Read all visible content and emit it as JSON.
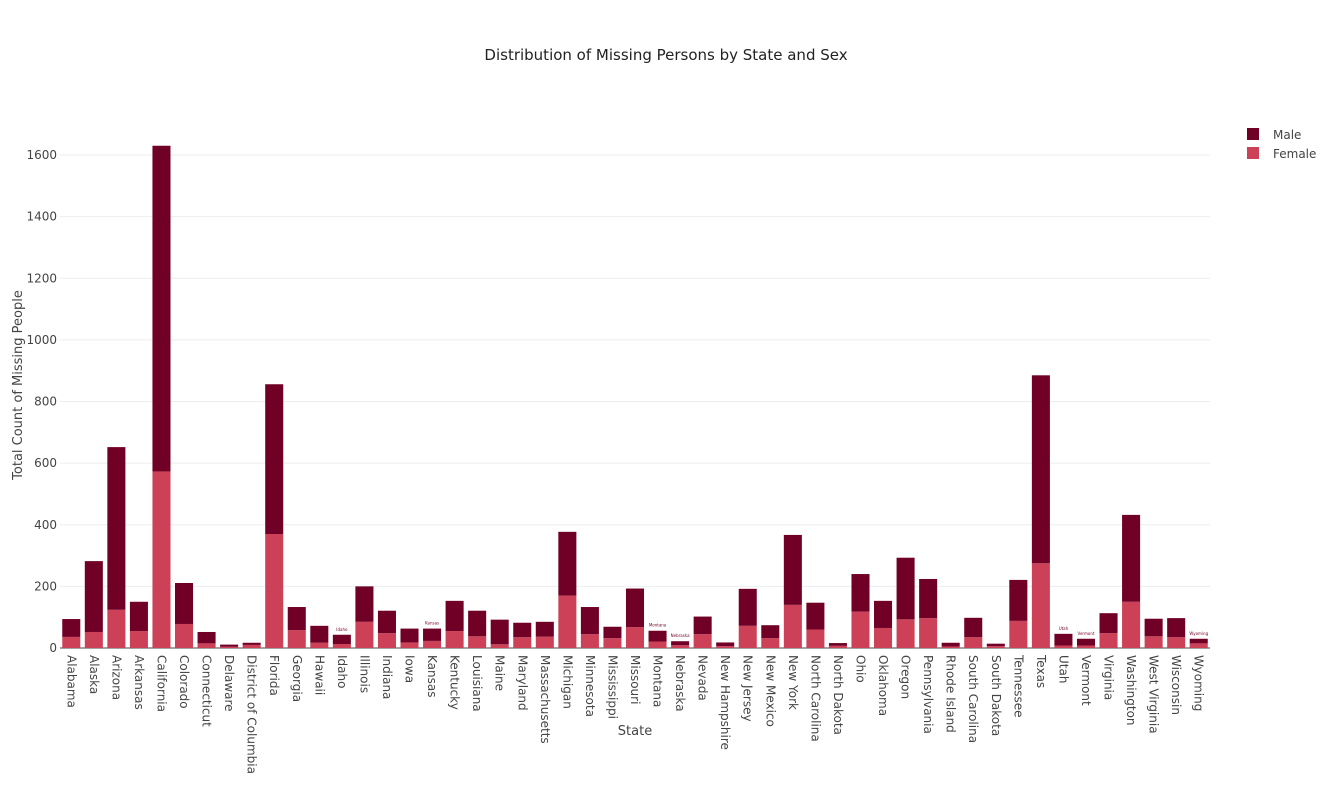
{
  "chart_data": {
    "type": "bar",
    "barmode": "stack",
    "title": "Distribution of Missing Persons by State and Sex",
    "xlabel": "State",
    "ylabel": "Total Count of Missing People",
    "ylim": [
      0,
      1700
    ],
    "yticks": [
      0,
      200,
      400,
      600,
      800,
      1000,
      1200,
      1400,
      1600
    ],
    "grid": true,
    "legend_position": "top-right",
    "categories": [
      "Alabama",
      "Alaska",
      "Arizona",
      "Arkansas",
      "California",
      "Colorado",
      "Connecticut",
      "Delaware",
      "District of Columbia",
      "Florida",
      "Georgia",
      "Hawaii",
      "Idaho",
      "Illinois",
      "Indiana",
      "Iowa",
      "Kansas",
      "Kentucky",
      "Louisiana",
      "Maine",
      "Maryland",
      "Massachusetts",
      "Michigan",
      "Minnesota",
      "Mississippi",
      "Missouri",
      "Montana",
      "Nebraska",
      "Nevada",
      "New Hampshire",
      "New Jersey",
      "New Mexico",
      "New York",
      "North Carolina",
      "North Dakota",
      "Ohio",
      "Oklahoma",
      "Oregon",
      "Pennsylvania",
      "Rhode Island",
      "South Carolina",
      "South Dakota",
      "Tennessee",
      "Texas",
      "Utah",
      "Vermont",
      "Virginia",
      "Washington",
      "West Virginia",
      "Wisconsin",
      "Wyoming"
    ],
    "series": [
      {
        "name": "Female",
        "color": "#cc4158",
        "values": [
          36,
          52,
          124,
          55,
          573,
          78,
          15,
          4,
          10,
          370,
          58,
          17,
          13,
          85,
          48,
          18,
          23,
          55,
          38,
          12,
          35,
          37,
          170,
          45,
          32,
          68,
          21,
          9,
          45,
          6,
          72,
          32,
          140,
          60,
          7,
          118,
          65,
          93,
          97,
          5,
          35,
          6,
          88,
          275,
          8,
          8,
          48,
          150,
          38,
          35,
          15
        ]
      },
      {
        "name": "Male",
        "color": "#710026",
        "values": [
          58,
          230,
          528,
          95,
          1057,
          133,
          37,
          7,
          7,
          486,
          75,
          55,
          30,
          115,
          73,
          45,
          40,
          98,
          83,
          80,
          47,
          48,
          207,
          88,
          37,
          125,
          35,
          13,
          57,
          12,
          120,
          42,
          227,
          87,
          9,
          122,
          88,
          200,
          127,
          12,
          63,
          8,
          133,
          610,
          38,
          22,
          65,
          282,
          57,
          62,
          15
        ]
      }
    ],
    "annotation_labels": [
      "Idaho",
      "Kansas",
      "Montana",
      "Nebraska",
      "Utah",
      "Vermont",
      "Wyoming"
    ]
  }
}
